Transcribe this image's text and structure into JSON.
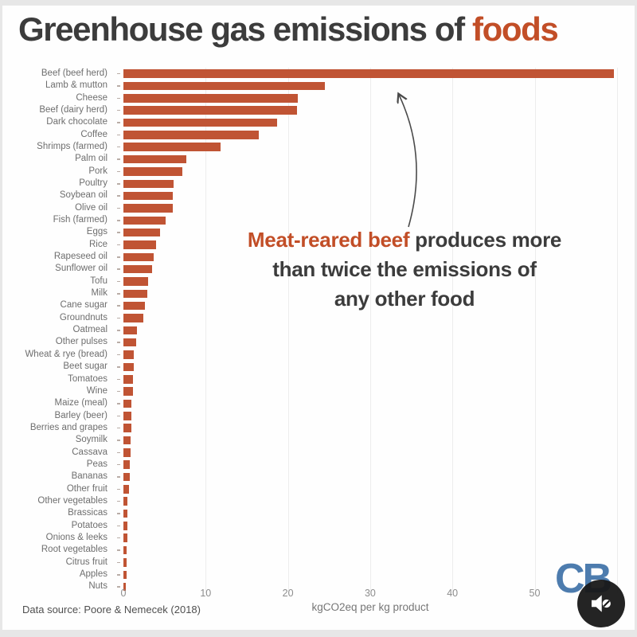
{
  "title": {
    "main": "Greenhouse gas emissions of ",
    "highlight": "foods"
  },
  "annotation": {
    "highlight": "Meat-reared beef",
    "line1_rest": " produces more",
    "line2": "than twice the emissions of",
    "line3": "any other food"
  },
  "source": "Data source: Poore & Nemecek (2018)",
  "logo": "CB",
  "icons": {
    "audio": "speaker-muted-icon"
  },
  "colors": {
    "bar": "#c05434",
    "accent": "#c24e27",
    "title_dark": "#3c3c3c",
    "logo_blue": "#4d7cae",
    "audio_button_bg": "#181818",
    "gridline": "#ededed"
  },
  "chart_data": {
    "type": "bar",
    "orientation": "horizontal",
    "title": "Greenhouse gas emissions of foods",
    "xlabel": "kgCO2eq per kg product",
    "ylabel": "",
    "xlim": [
      0,
      61
    ],
    "x_ticks": [
      0,
      10,
      20,
      30,
      40,
      50
    ],
    "gridlines": [
      10,
      20,
      30,
      40,
      50,
      60
    ],
    "grid": true,
    "legend": false,
    "annotation": "Meat-reared beef produces more than twice the emissions of any other food",
    "categories": [
      "Beef (beef herd)",
      "Lamb & mutton",
      "Cheese",
      "Beef (dairy herd)",
      "Dark chocolate",
      "Coffee",
      "Shrimps (farmed)",
      "Palm oil",
      "Pork",
      "Poultry",
      "Soybean oil",
      "Olive oil",
      "Fish (farmed)",
      "Eggs",
      "Rice",
      "Rapeseed oil",
      "Sunflower oil",
      "Tofu",
      "Milk",
      "Cane sugar",
      "Groundnuts",
      "Oatmeal",
      "Other pulses",
      "Wheat & rye (bread)",
      "Beet sugar",
      "Tomatoes",
      "Wine",
      "Maize (meal)",
      "Barley (beer)",
      "Berries and grapes",
      "Soymilk",
      "Cassava",
      "Peas",
      "Bananas",
      "Other fruit",
      "Other vegetables",
      "Brassicas",
      "Potatoes",
      "Onions & leeks",
      "Root vegetables",
      "Citrus fruit",
      "Apples",
      "Nuts"
    ],
    "values": [
      59.6,
      24.5,
      21.2,
      21.1,
      18.7,
      16.5,
      11.8,
      7.6,
      7.2,
      6.1,
      6.0,
      6.0,
      5.1,
      4.5,
      4.0,
      3.7,
      3.5,
      3.0,
      2.9,
      2.6,
      2.4,
      1.6,
      1.5,
      1.3,
      1.3,
      1.2,
      1.2,
      1.0,
      1.0,
      1.0,
      0.9,
      0.9,
      0.8,
      0.8,
      0.7,
      0.5,
      0.5,
      0.45,
      0.45,
      0.4,
      0.35,
      0.35,
      0.3
    ]
  }
}
